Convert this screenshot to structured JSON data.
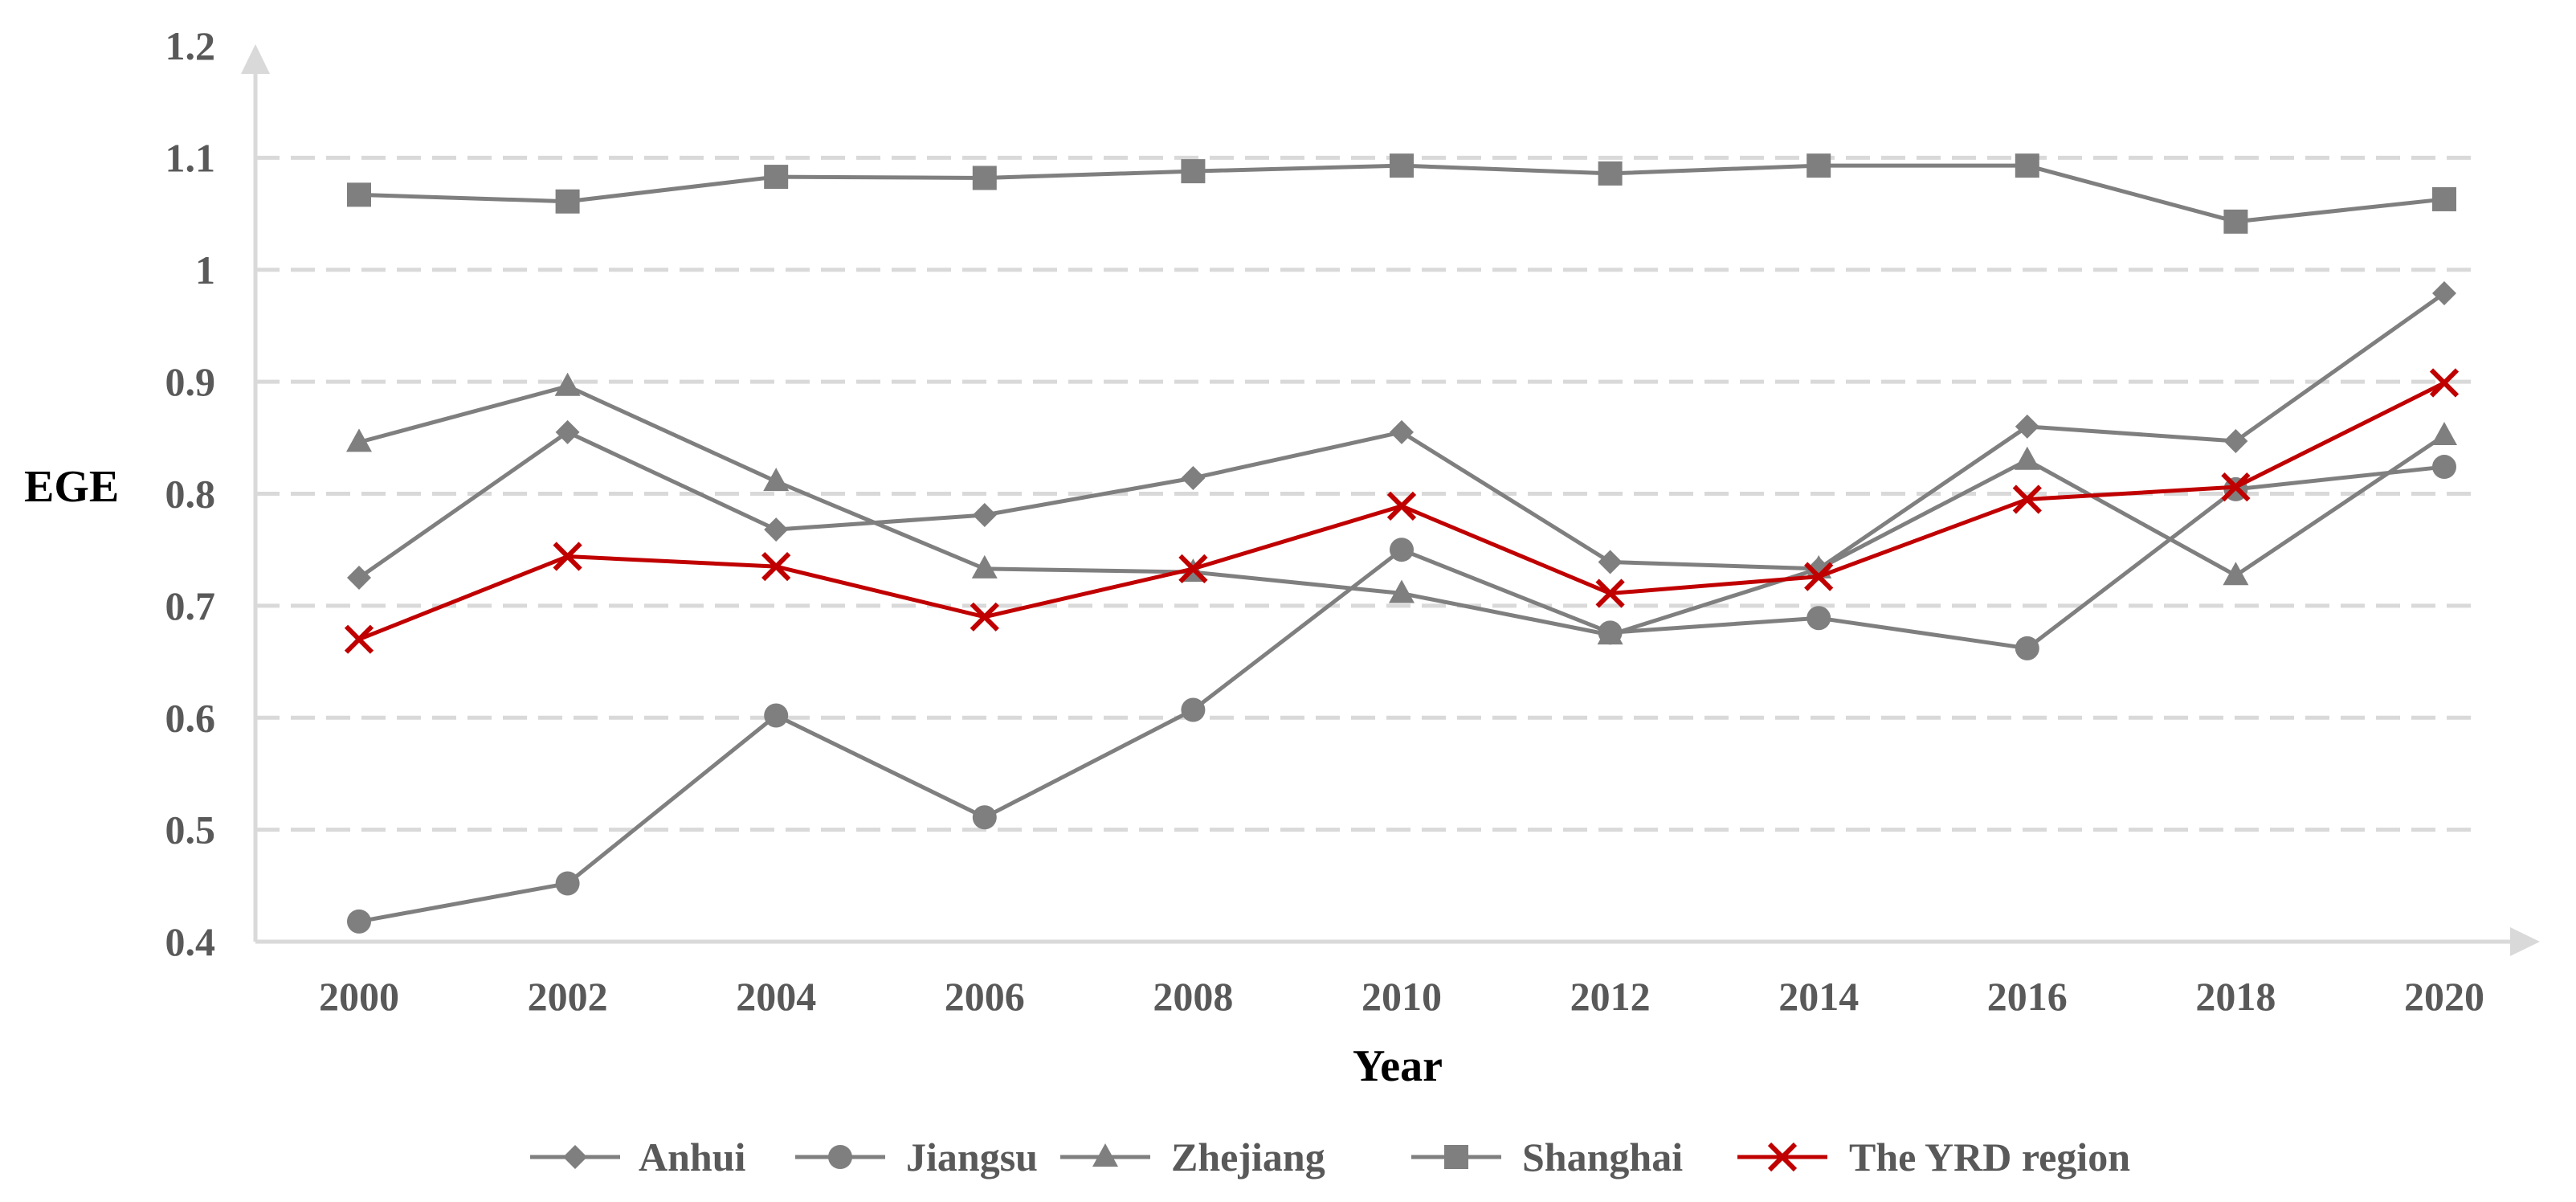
{
  "chart_data": {
    "type": "line",
    "title": "",
    "xlabel": "Year",
    "ylabel": "EGE",
    "categories": [
      "2000",
      "2002",
      "2004",
      "2006",
      "2008",
      "2010",
      "2012",
      "2014",
      "2016",
      "2018",
      "2020"
    ],
    "ylim": [
      0.4,
      1.2
    ],
    "yticks": [
      "0.4",
      "0.5",
      "0.6",
      "0.7",
      "0.8",
      "0.9",
      "1",
      "1.1",
      "1.2"
    ],
    "grid": "horizontal dashed",
    "legend_position": "bottom",
    "series": [
      {
        "name": "Anhui",
        "marker": "diamond",
        "color": "#7f7f7f",
        "values": [
          0.725,
          0.855,
          0.768,
          0.781,
          0.814,
          0.855,
          0.739,
          0.733,
          0.86,
          0.847,
          0.979
        ]
      },
      {
        "name": "Jiangsu",
        "marker": "circle",
        "color": "#7f7f7f",
        "values": [
          0.418,
          0.452,
          0.602,
          0.511,
          0.607,
          0.75,
          0.676,
          0.689,
          0.662,
          0.804,
          0.824
        ]
      },
      {
        "name": "Zhejiang",
        "marker": "triangle",
        "color": "#7f7f7f",
        "values": [
          0.846,
          0.896,
          0.811,
          0.733,
          0.73,
          0.711,
          0.674,
          0.733,
          0.83,
          0.727,
          0.852
        ]
      },
      {
        "name": "Shanghai",
        "marker": "square",
        "color": "#7f7f7f",
        "values": [
          1.067,
          1.061,
          1.083,
          1.082,
          1.088,
          1.093,
          1.086,
          1.093,
          1.093,
          1.043,
          1.063
        ]
      },
      {
        "name": "The YRD region",
        "marker": "x",
        "color": "#c00000",
        "values": [
          0.67,
          0.744,
          0.735,
          0.69,
          0.733,
          0.789,
          0.711,
          0.726,
          0.795,
          0.806,
          0.899
        ]
      }
    ]
  }
}
